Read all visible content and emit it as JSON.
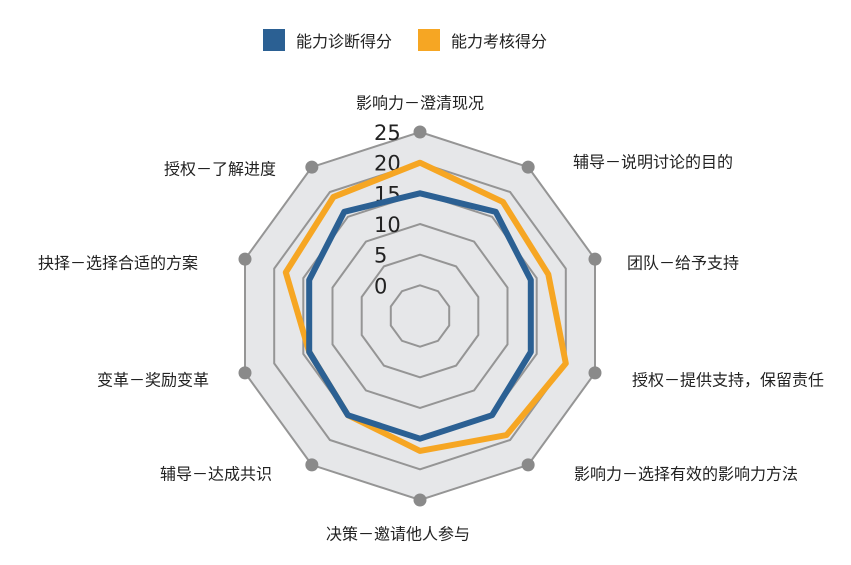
{
  "colors": {
    "series1": "#2b6093",
    "series2": "#f6a623",
    "outer_fill": "#e6e7e9",
    "grid": "#959595",
    "dot": "#8a8a8a"
  },
  "chart_data": {
    "type": "radar",
    "title": "",
    "categories": [
      "影响力－澄清现况",
      "辅导－说明讨论的目的",
      "团队－给予支持",
      "授权－提供支持，保留责任",
      "影响力－选择有效的影响力方法",
      "决策－邀请他人参与",
      "辅导－达成共识",
      "变革－奖励变革",
      "抉择－选择合适的方案",
      "授权－了解进度"
    ],
    "radial_ticks": [
      "0",
      "5",
      "10",
      "15",
      "20",
      "25"
    ],
    "rmin": -5,
    "rmax": 25,
    "legend_position": "top",
    "grid": true,
    "series": [
      {
        "name": "能力诊断得分",
        "values": [
          15,
          16,
          14,
          14,
          15,
          15,
          15,
          14,
          14,
          16
        ]
      },
      {
        "name": "能力考核得分",
        "values": [
          20,
          18,
          17,
          20,
          19,
          17,
          15,
          14,
          18,
          19
        ]
      }
    ]
  }
}
